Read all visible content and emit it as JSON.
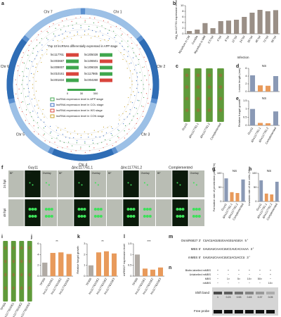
{
  "panel_labels": [
    "a",
    "b",
    "c",
    "d",
    "e",
    "f",
    "g",
    "h",
    "i",
    "j",
    "k",
    "l",
    "m",
    "n"
  ],
  "circos": {
    "title": "Top 10 lncRNAs differentially expressed in APP stage",
    "chromosomes": [
      "Chr 1",
      "Chr 2",
      "Chr 3",
      "Chr 4",
      "Chr 5",
      "Chr 6",
      "Chr 7"
    ],
    "lncrnas": [
      "lnc117761",
      "lnc205028",
      "lnc003687",
      "lnc106501",
      "lnc009007",
      "lnc206026",
      "lnc010161",
      "lnc117865",
      "lnc001834",
      "lnc004260"
    ],
    "scale": [
      "0",
      "30",
      "300"
    ],
    "legend": [
      "lncRNA expression level in APP stage",
      "lncRNA expression level in COL stage",
      "lncRNA expression level in IKS stage",
      "lncRNA expression level in CON stage"
    ]
  },
  "charts": {
    "b": {
      "y_label": "Mg_lnc117761 expression level",
      "x_label": "Infection",
      "color": "#9a8f86",
      "categories": [
        "Mycelium in CM",
        "Conidia",
        "Mycelium in MM",
        "0.5 hpi",
        "4 hpi",
        "8 hpi",
        "12 hpi",
        "24 hpi",
        "36 hpi",
        "48 hpi",
        "72 hpi",
        "96 hpi"
      ],
      "values": [
        1,
        1.5,
        3.8,
        2,
        4.5,
        4.7,
        5,
        6,
        7.5,
        8.5,
        8,
        8.4
      ],
      "ylim": [
        0,
        10
      ],
      "yticks": [
        0,
        2,
        4,
        6,
        8,
        10
      ]
    },
    "d": {
      "y_label": "Lesion length (mm)",
      "colors": [
        "#8a99b5",
        "#e89a5b",
        "#e89a5b",
        "#8a99b5"
      ],
      "values": [
        4.2,
        1.6,
        1.5,
        4
      ],
      "ylim": [
        0,
        6
      ],
      "yticks": [
        0,
        2,
        4,
        6
      ],
      "annotations": [
        "NS"
      ]
    },
    "e": {
      "y_label": "Relative fungal growth",
      "colors": [
        "#8a99b5",
        "#e89a5b",
        "#e89a5b",
        "#8a99b5"
      ],
      "categories": [
        "Guy11",
        "Δlnc117761.1",
        "Δlnc117761.2",
        "Complemented"
      ],
      "values": [
        1,
        0.15,
        0.13,
        0.85
      ],
      "ylim": [
        0,
        1.5
      ],
      "yticks": [
        0,
        0.5,
        1,
        1.5
      ],
      "annotations": [
        "NS"
      ]
    },
    "g": {
      "y_label": "Formation rate of penetration pegs (%)",
      "colors": [
        "#8a99b5",
        "#e89a5b",
        "#e89a5b",
        "#8a99b5"
      ],
      "categories": [
        "Guy11",
        "Δlnc117761.1",
        "Δlnc117761.2",
        "Complemented"
      ],
      "values": [
        82,
        33,
        30,
        78
      ],
      "ylim": [
        0,
        100
      ],
      "yticks": [
        0,
        50,
        100
      ],
      "annotations": [
        "NS"
      ]
    },
    "h": {
      "y_label": "Invasion rate of rice cells (%)",
      "colors": [
        "#8a99b5",
        "#e89a5b",
        "#e89a5b",
        "#8a99b5"
      ],
      "categories": [
        "Guy11",
        "Δlnc117761.1",
        "Δlnc117761.2",
        "Complemented"
      ],
      "values": [
        75,
        28,
        25,
        70
      ],
      "ylim": [
        0,
        100
      ],
      "yticks": [
        0,
        50,
        100
      ],
      "annotations": [
        "NS"
      ]
    },
    "j": {
      "y_label": "Lesion length (mm)",
      "colors": [
        "#b0aaa4",
        "#e89a5b",
        "#e89a5b",
        "#e89a5b"
      ],
      "categories": [
        "TP309",
        "lnc117761OE1",
        "lnc117761OE2",
        "lnc117761OE3"
      ],
      "values": [
        2.5,
        4.3,
        4.4,
        4.1
      ],
      "ylim": [
        0,
        6
      ],
      "yticks": [
        0,
        2,
        4,
        6
      ],
      "annotations": [
        "**"
      ]
    },
    "k": {
      "y_label": "Relative fungal growth",
      "colors": [
        "#b0aaa4",
        "#e89a5b",
        "#e89a5b",
        "#e89a5b"
      ],
      "categories": [
        "TP309",
        "lnc117761OE1",
        "lnc117761OE2",
        "lnc117761OE3"
      ],
      "values": [
        1,
        2.2,
        2.3,
        2.1
      ],
      "ylim": [
        0,
        3
      ],
      "yticks": [
        0,
        1,
        2,
        3
      ],
      "annotations": [
        "**"
      ]
    },
    "l": {
      "y_label": "miR6827 expression level",
      "colors": [
        "#b0aaa4",
        "#e89a5b",
        "#e89a5b",
        "#e89a5b"
      ],
      "categories": [
        "TP309",
        "lnc117761OE1",
        "lnc117761OE2",
        "lnc117761OE3"
      ],
      "values": [
        1,
        0.35,
        0.3,
        0.4
      ],
      "ylim": [
        0,
        1.5
      ],
      "yticks": [
        0,
        0.5,
        1,
        1.5
      ],
      "annotations": [
        "***"
      ]
    }
  },
  "images": {
    "c": {
      "labels": [
        "Guy11",
        "Δlnc117761.1",
        "Δlnc117761.2",
        "Complemented"
      ]
    },
    "f": {
      "columns": [
        "Guy11",
        "Δlnc117761.1",
        "Δlnc117761.2",
        "Complemented"
      ],
      "rows": [
        "24 hpi",
        "48 hpi"
      ],
      "channels": [
        "BF",
        "GFP",
        "Overlay"
      ]
    },
    "i": {
      "labels": [
        "TP309",
        "lnc117761OE1",
        "lnc117761OE2",
        "lnc117761OE3"
      ]
    }
  },
  "sequence": {
    "rows": [
      {
        "name": "OsmiR6827 3'",
        "seq": "CUACUAGUUUGAAGGUAGUGA 5'"
      },
      {
        "name": "MBS 5'",
        "seq": "GAUGAUCAAACUUCCAUCACAAAA 3'"
      },
      {
        "name": "mMBS 5'",
        "seq": "GAUGAUCAAACUUCUACUACCU 3'"
      }
    ]
  },
  "gel": {
    "rows": [
      {
        "label": "Biotin-labelled mMBS",
        "cells": [
          "+",
          "+",
          "+",
          "+",
          "+",
          "+"
        ]
      },
      {
        "label": "Unlabelled mMBS",
        "cells": [
          "−",
          "−",
          "−",
          "−",
          "−",
          "+"
        ]
      },
      {
        "label": "MBS",
        "cells": [
          "−",
          "1×",
          "5×",
          "10×",
          "50×",
          "−"
        ]
      },
      {
        "label": "mMBS",
        "cells": [
          "−",
          "−",
          "−",
          "−",
          "−",
          "10×"
        ]
      }
    ],
    "band_values": [
      "1",
      "0.23",
      "0.53",
      "0.45",
      "0.37",
      "0.05"
    ],
    "shift_band": "Shift band",
    "free_probe": "Free probe"
  }
}
